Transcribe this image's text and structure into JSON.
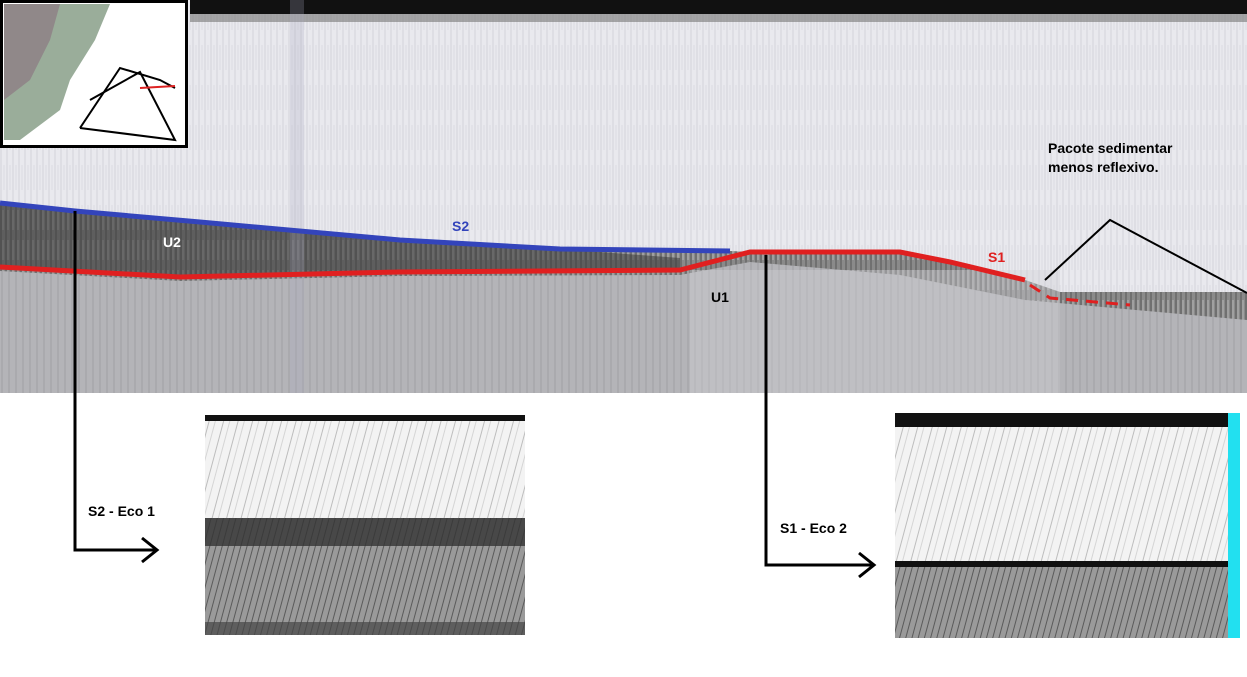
{
  "labels": {
    "note_line1": "Pacote sedimentar",
    "note_line2": "menos reflexivo.",
    "s2": "S2",
    "u2": "U2",
    "u1": "U1",
    "s1": "S1",
    "eco1": "S2 - Eco 1",
    "eco2": "S1 - Eco 2"
  }
}
